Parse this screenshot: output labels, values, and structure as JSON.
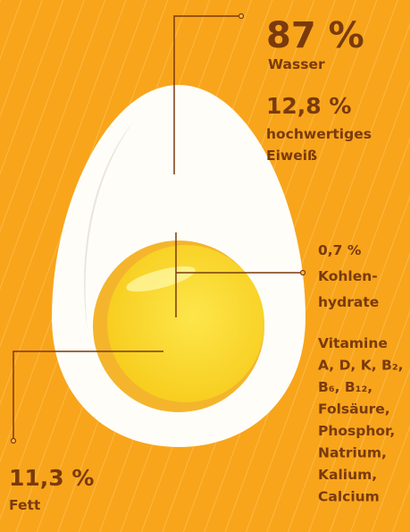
{
  "water": {
    "percent": "87 %",
    "label": "Wasser"
  },
  "protein": {
    "percent": "12,8 %",
    "label_lines": [
      "hochwertiges",
      "Eiweiß"
    ]
  },
  "carbs": {
    "percent": "0,7 %",
    "label_lines": [
      "Kohlen-",
      "hydrate"
    ]
  },
  "vitamins": {
    "lines": [
      "Vitamine",
      "A, D, K, B₂,",
      "B₆, B₁₂,",
      "Folsäure,",
      "Phosphor,",
      "Natrium,",
      "Kalium,",
      "Calcium"
    ]
  },
  "fat": {
    "percent": "11,3 %",
    "label": "Fett"
  }
}
